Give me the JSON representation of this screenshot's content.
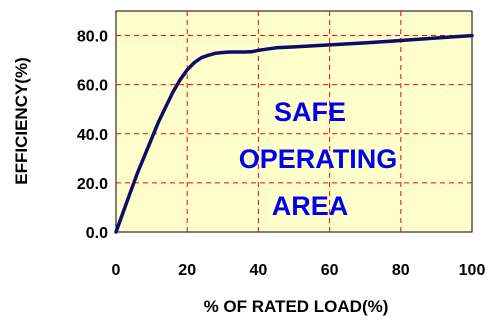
{
  "chart_data": {
    "type": "line",
    "xlabel": "% OF RATED LOAD(%)",
    "ylabel": "EFFICIENCY(%)",
    "xlim": [
      0,
      100
    ],
    "ylim": [
      0,
      90
    ],
    "x_ticks": [
      "0",
      "20",
      "40",
      "60",
      "80",
      "100"
    ],
    "y_ticks": [
      "0.0",
      "20.0",
      "40.0",
      "60.0",
      "80.0"
    ],
    "grid": true,
    "legend": "none",
    "annotation": [
      "SAFE",
      "OPERATING",
      "AREA"
    ],
    "series": [
      {
        "x": [
          0,
          2,
          4,
          6,
          8,
          10,
          12,
          14,
          16,
          18,
          20,
          22,
          24,
          26,
          28,
          30,
          32,
          34,
          36,
          38,
          40,
          45,
          50,
          55,
          60,
          65,
          70,
          75,
          80,
          85,
          90,
          95,
          100
        ],
        "y": [
          0,
          8,
          16,
          24,
          31,
          38,
          45,
          51,
          57,
          62,
          66,
          69,
          71,
          72,
          72.8,
          73.1,
          73.3,
          73.3,
          73.3,
          73.4,
          74,
          75,
          75.4,
          75.8,
          76.2,
          76.6,
          77,
          77.5,
          78,
          78.5,
          79,
          79.5,
          80
        ]
      }
    ],
    "colors": {
      "plot_background": "#ffffcc",
      "grid": "#ff0000",
      "line": "#0d0d66",
      "annotation_text": "#0000ee"
    }
  }
}
